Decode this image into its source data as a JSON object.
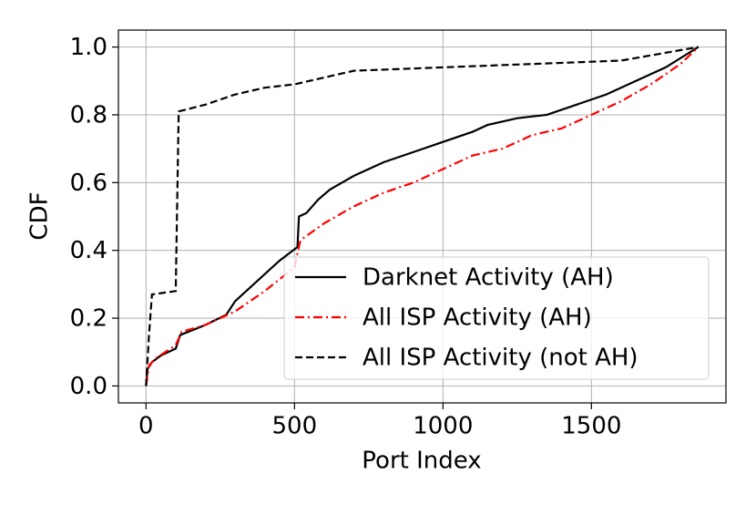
{
  "chart_data": {
    "type": "line",
    "x_label": "Port Index",
    "y_label": "CDF",
    "xlim": [
      -93,
      1953
    ],
    "ylim": [
      -0.05,
      1.05
    ],
    "xticks": [
      0,
      500,
      1000,
      1500
    ],
    "yticks": [
      {
        "value": 0,
        "label": "0.0"
      },
      {
        "value": 0.2,
        "label": "0.2"
      },
      {
        "value": 0.4,
        "label": "0.4"
      },
      {
        "value": 0.6,
        "label": "0.6"
      },
      {
        "value": 0.8,
        "label": "0.8"
      },
      {
        "value": 1,
        "label": "1.0"
      }
    ],
    "grid": true,
    "legend": "lower right",
    "series": [
      {
        "name": "Darknet Activity (AH)",
        "color": "#000000",
        "linestyle": "solid",
        "x": [
          0,
          5,
          20,
          50,
          100,
          115,
          200,
          270,
          300,
          350,
          400,
          450,
          510,
          515,
          540,
          580,
          620,
          700,
          800,
          900,
          1000,
          1100,
          1150,
          1250,
          1350,
          1450,
          1550,
          1650,
          1750,
          1860
        ],
        "values": [
          0,
          0.05,
          0.07,
          0.09,
          0.11,
          0.15,
          0.18,
          0.21,
          0.25,
          0.29,
          0.33,
          0.37,
          0.41,
          0.5,
          0.51,
          0.55,
          0.58,
          0.62,
          0.66,
          0.69,
          0.72,
          0.75,
          0.77,
          0.79,
          0.8,
          0.83,
          0.86,
          0.9,
          0.94,
          1
        ]
      },
      {
        "name": "All ISP Activity (AH)",
        "color": "#ff0000",
        "linestyle": "dashdot",
        "x": [
          0,
          10,
          30,
          100,
          120,
          200,
          300,
          400,
          500,
          520,
          600,
          700,
          800,
          900,
          1000,
          1100,
          1200,
          1300,
          1400,
          1500,
          1600,
          1700,
          1800,
          1860
        ],
        "values": [
          0,
          0.06,
          0.08,
          0.12,
          0.16,
          0.18,
          0.22,
          0.28,
          0.35,
          0.43,
          0.48,
          0.53,
          0.57,
          0.6,
          0.64,
          0.68,
          0.7,
          0.74,
          0.76,
          0.8,
          0.84,
          0.89,
          0.95,
          1
        ]
      },
      {
        "name": "All ISP Activity (not AH)",
        "color": "#000000",
        "linestyle": "dashed",
        "x": [
          0,
          10,
          20,
          100,
          110,
          200,
          300,
          400,
          500,
          600,
          700,
          1000,
          1300,
          1600,
          1860
        ],
        "values": [
          0,
          0.15,
          0.27,
          0.28,
          0.81,
          0.83,
          0.86,
          0.88,
          0.89,
          0.91,
          0.93,
          0.94,
          0.95,
          0.96,
          1
        ]
      }
    ]
  }
}
